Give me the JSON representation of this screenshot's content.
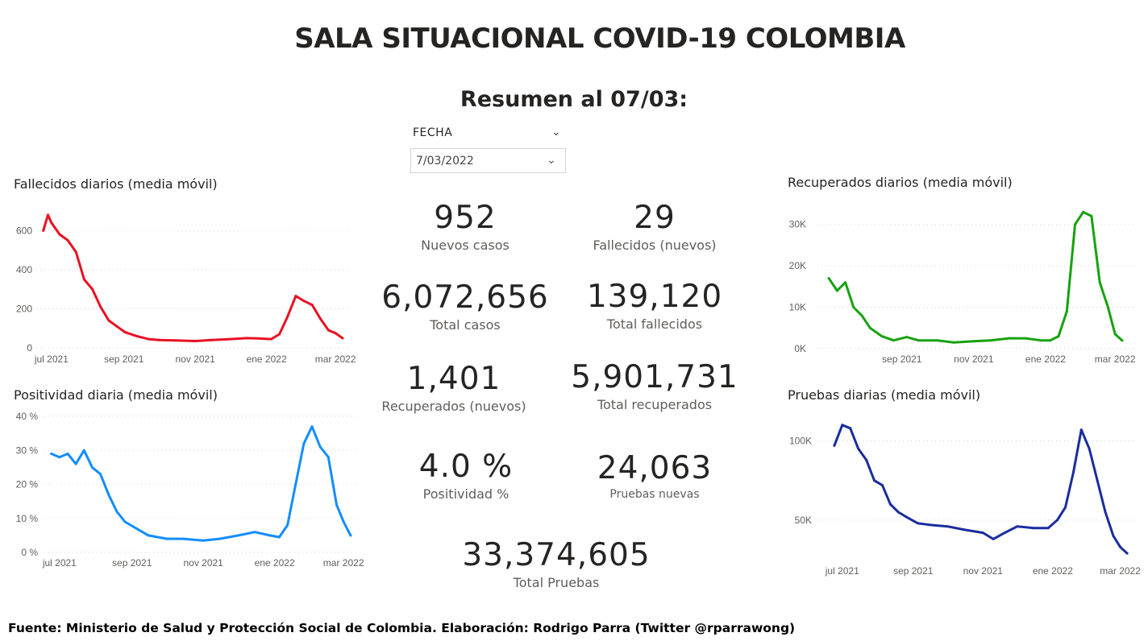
{
  "header": {
    "title": "SALA SITUACIONAL COVID-19 COLOMBIA",
    "subtitle": "Resumen al 07/03:"
  },
  "slicer": {
    "label": "FECHA",
    "value": "7/03/2022"
  },
  "kpis": [
    {
      "value": "952",
      "label": "Nuevos casos"
    },
    {
      "value": "29",
      "label": "Fallecidos (nuevos)"
    },
    {
      "value": "6,072,656",
      "label": "Total casos"
    },
    {
      "value": "139,120",
      "label": "Total fallecidos"
    },
    {
      "value": "1,401",
      "label": "Recuperados (nuevos)"
    },
    {
      "value": "5,901,731",
      "label": "Total recuperados"
    },
    {
      "value": "4.0 %",
      "label": "Positividad %"
    },
    {
      "value": "24,063",
      "label": "Pruebas nuevas"
    },
    {
      "value": "33,374,605",
      "label": "Total Pruebas"
    }
  ],
  "footer": "Fuente: Ministerio de Salud y Protección Social de Colombia. Elaboración: Rodrigo Parra (Twitter @rparrawong)",
  "chart_data": [
    {
      "type": "line",
      "title": "Fallecidos diarios (media móvil)",
      "color": "#e81123",
      "x": [
        "2021-06-24",
        "2021-06-28",
        "2021-07-01",
        "2021-07-08",
        "2021-07-15",
        "2021-07-22",
        "2021-07-29",
        "2021-08-05",
        "2021-08-12",
        "2021-08-19",
        "2021-08-26",
        "2021-09-02",
        "2021-09-12",
        "2021-09-22",
        "2021-10-01",
        "2021-10-15",
        "2021-11-01",
        "2021-11-15",
        "2021-12-01",
        "2021-12-15",
        "2021-12-25",
        "2022-01-05",
        "2022-01-12",
        "2022-01-19",
        "2022-01-26",
        "2022-02-02",
        "2022-02-09",
        "2022-02-16",
        "2022-02-23",
        "2022-03-01",
        "2022-03-07"
      ],
      "y": [
        600,
        680,
        640,
        580,
        550,
        490,
        350,
        300,
        210,
        140,
        110,
        80,
        60,
        45,
        40,
        38,
        35,
        40,
        45,
        50,
        48,
        45,
        70,
        160,
        265,
        240,
        220,
        150,
        90,
        75,
        50
      ],
      "x_ticks": [
        "jul 2021",
        "sep 2021",
        "nov 2021",
        "ene 2022",
        "mar 2022"
      ],
      "y_ticks": [
        "0",
        "200",
        "400",
        "600"
      ],
      "ylim": [
        0,
        700
      ]
    },
    {
      "type": "line",
      "title": "Positividad diaria (media móvil)",
      "color": "#118dff",
      "x": [
        "2021-06-24",
        "2021-07-01",
        "2021-07-08",
        "2021-07-15",
        "2021-07-22",
        "2021-07-29",
        "2021-08-05",
        "2021-08-12",
        "2021-08-19",
        "2021-08-26",
        "2021-09-05",
        "2021-09-15",
        "2021-10-01",
        "2021-10-15",
        "2021-11-01",
        "2021-11-15",
        "2021-12-01",
        "2021-12-15",
        "2021-12-28",
        "2022-01-05",
        "2022-01-12",
        "2022-01-19",
        "2022-01-26",
        "2022-02-02",
        "2022-02-09",
        "2022-02-16",
        "2022-02-23",
        "2022-03-01",
        "2022-03-07"
      ],
      "y": [
        29,
        28,
        29,
        26,
        30,
        25,
        23,
        17,
        12,
        9,
        7,
        5,
        4,
        4,
        3.5,
        4,
        5,
        6,
        5,
        4.5,
        8,
        20,
        32,
        37,
        31,
        28,
        14,
        9,
        5
      ],
      "x_ticks": [
        "jul 2021",
        "sep 2021",
        "nov 2021",
        "ene 2022",
        "mar 2022"
      ],
      "y_ticks": [
        "0 %",
        "10 %",
        "20 %",
        "30 %",
        "40 %"
      ],
      "ylim": [
        0,
        40
      ]
    },
    {
      "type": "line",
      "title": "Recuperados diarios (media móvil)",
      "color": "#16a20e",
      "x": [
        "2021-07-01",
        "2021-07-08",
        "2021-07-15",
        "2021-07-22",
        "2021-07-29",
        "2021-08-05",
        "2021-08-15",
        "2021-08-25",
        "2021-09-05",
        "2021-09-15",
        "2021-10-01",
        "2021-10-15",
        "2021-11-01",
        "2021-11-15",
        "2021-12-01",
        "2021-12-15",
        "2021-12-28",
        "2022-01-05",
        "2022-01-12",
        "2022-01-19",
        "2022-01-26",
        "2022-02-02",
        "2022-02-09",
        "2022-02-16",
        "2022-02-23",
        "2022-03-01",
        "2022-03-07"
      ],
      "y": [
        17000,
        14000,
        16000,
        10000,
        8000,
        5000,
        3000,
        2000,
        2800,
        2000,
        2000,
        1500,
        1800,
        2000,
        2500,
        2500,
        2000,
        2000,
        3000,
        9000,
        30000,
        33000,
        32000,
        16000,
        10000,
        3500,
        2000
      ],
      "x_ticks": [
        "sep 2021",
        "nov 2021",
        "ene 2022",
        "mar 2022"
      ],
      "y_ticks": [
        "0K",
        "10K",
        "20K",
        "30K"
      ],
      "ylim": [
        0,
        35000
      ]
    },
    {
      "type": "line",
      "title": "Pruebas diarias (media móvil)",
      "color": "#1a2d9c",
      "x": [
        "2021-06-24",
        "2021-07-01",
        "2021-07-08",
        "2021-07-15",
        "2021-07-22",
        "2021-07-29",
        "2021-08-05",
        "2021-08-12",
        "2021-08-19",
        "2021-08-26",
        "2021-09-05",
        "2021-09-15",
        "2021-10-01",
        "2021-10-15",
        "2021-11-01",
        "2021-11-10",
        "2021-11-20",
        "2021-12-01",
        "2021-12-15",
        "2021-12-28",
        "2022-01-05",
        "2022-01-12",
        "2022-01-19",
        "2022-01-26",
        "2022-02-02",
        "2022-02-09",
        "2022-02-16",
        "2022-02-23",
        "2022-03-01",
        "2022-03-07"
      ],
      "y": [
        97000,
        110000,
        108000,
        95000,
        88000,
        75000,
        72000,
        60000,
        55000,
        52000,
        48000,
        47000,
        46000,
        44000,
        42000,
        38000,
        42000,
        46000,
        45000,
        45000,
        50000,
        58000,
        80000,
        107000,
        95000,
        75000,
        55000,
        40000,
        33000,
        29000
      ],
      "x_ticks": [
        "jul 2021",
        "sep 2021",
        "nov 2021",
        "ene 2022",
        "mar 2022"
      ],
      "y_ticks": [
        "50K",
        "100K"
      ],
      "ylim": [
        25000,
        115000
      ]
    }
  ]
}
